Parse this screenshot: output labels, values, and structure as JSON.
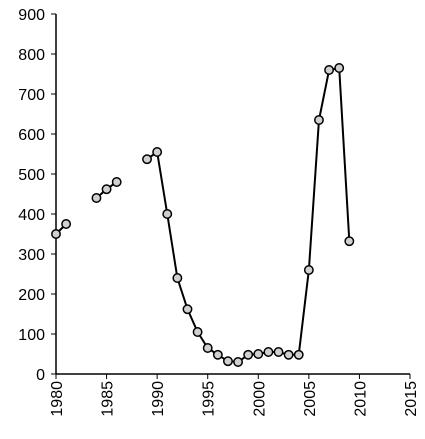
{
  "chart_data": {
    "type": "line",
    "x": [
      1980,
      1981,
      1982,
      1983,
      1984,
      1985,
      1986,
      1987,
      1988,
      1989,
      1990,
      1991,
      1992,
      1993,
      1994,
      1995,
      1996,
      1997,
      1998,
      1999,
      2000,
      2001,
      2002,
      2003,
      2004,
      2005,
      2006,
      2007,
      2008,
      2009
    ],
    "series": [
      {
        "color": "#000000",
        "values": [
          350,
          375,
          null,
          null,
          440,
          462,
          480,
          null,
          null,
          537,
          555,
          400,
          240,
          162,
          105,
          65,
          48,
          32,
          30,
          48,
          50,
          55,
          55,
          48,
          48,
          260,
          635,
          760,
          765,
          332
        ]
      }
    ],
    "xlim": [
      1980,
      2015
    ],
    "xticks": [
      1980,
      1985,
      1990,
      1995,
      2000,
      2005,
      2010,
      2015
    ],
    "ylim": [
      0,
      900
    ],
    "yticks": [
      0,
      100,
      200,
      300,
      400,
      500,
      600,
      700,
      800,
      900
    ],
    "marker_fill": "#d0d0d0"
  }
}
